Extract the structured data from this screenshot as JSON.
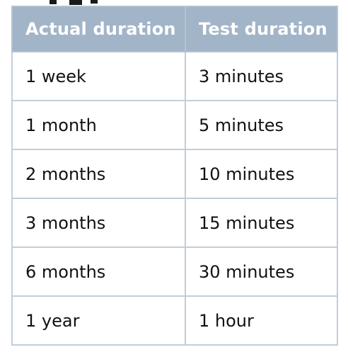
{
  "table": {
    "headers": [
      "Actual duration",
      "Test duration"
    ],
    "rows": [
      [
        "1 week",
        "3 minutes"
      ],
      [
        "1 month",
        "5 minutes"
      ],
      [
        "2 months",
        "10 minutes"
      ],
      [
        "3 months",
        "15 minutes"
      ],
      [
        "6 months",
        "30 minutes"
      ],
      [
        "1 year",
        "1 hour"
      ]
    ]
  },
  "colors": {
    "header_background": "#a2b4c8",
    "header_text": "#ffffff",
    "border": "#c3cdd8",
    "cell_text": "#111111"
  }
}
